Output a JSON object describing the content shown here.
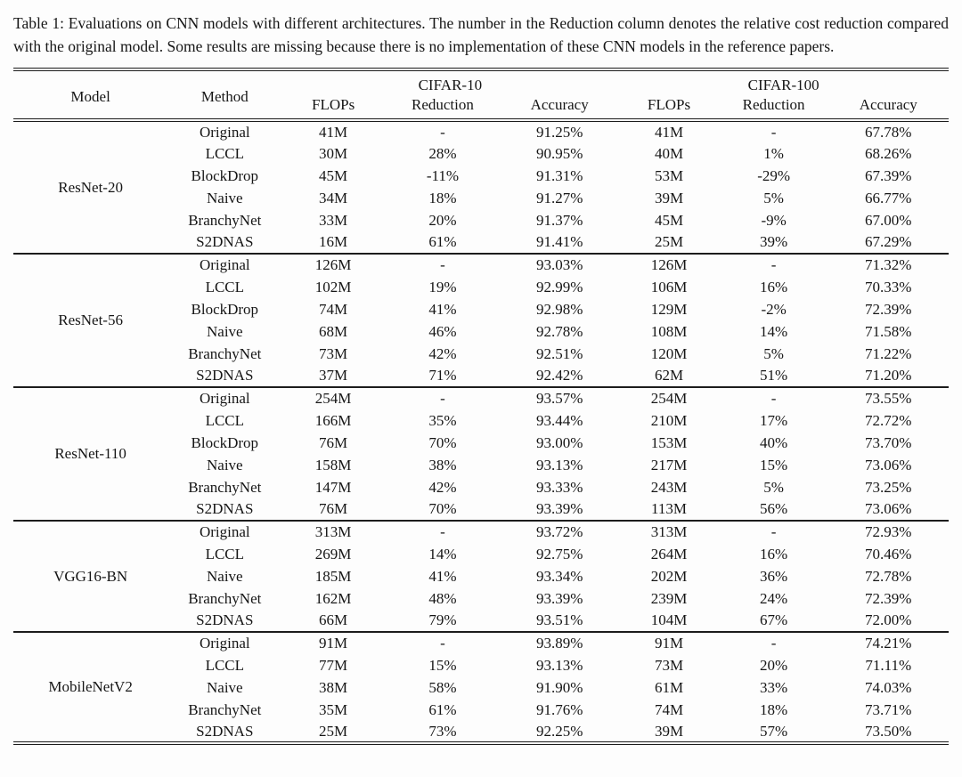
{
  "caption": "Table 1: Evaluations on CNN models with different architectures. The number in the Reduction column denotes the relative cost reduction compared with the original model. Some results are missing because there is no implementation of these CNN models in the reference papers.",
  "table": {
    "headers": {
      "model": "Model",
      "method": "Method",
      "cifar10": "CIFAR-10",
      "cifar100": "CIFAR-100",
      "flops": "FLOPs",
      "reduction": "Reduction",
      "accuracy": "Accuracy"
    },
    "groups": [
      {
        "model": "ResNet-20",
        "rows": [
          {
            "method": "Original",
            "c10_flops": "41M",
            "c10_red": "-",
            "c10_acc": "91.25%",
            "c100_flops": "41M",
            "c100_red": "-",
            "c100_acc": "67.78%"
          },
          {
            "method": "LCCL",
            "c10_flops": "30M",
            "c10_red": "28%",
            "c10_acc": "90.95%",
            "c100_flops": "40M",
            "c100_red": "1%",
            "c100_acc": "68.26%"
          },
          {
            "method": "BlockDrop",
            "c10_flops": "45M",
            "c10_red": "-11%",
            "c10_acc": "91.31%",
            "c100_flops": "53M",
            "c100_red": "-29%",
            "c100_acc": "67.39%"
          },
          {
            "method": "Naive",
            "c10_flops": "34M",
            "c10_red": "18%",
            "c10_acc": "91.27%",
            "c100_flops": "39M",
            "c100_red": "5%",
            "c100_acc": "66.77%"
          },
          {
            "method": "BranchyNet",
            "c10_flops": "33M",
            "c10_red": "20%",
            "c10_acc": "91.37%",
            "c100_flops": "45M",
            "c100_red": "-9%",
            "c100_acc": "67.00%"
          },
          {
            "method": "S2DNAS",
            "c10_flops": "16M",
            "c10_red": "61%",
            "c10_acc": "91.41%",
            "c100_flops": "25M",
            "c100_red": "39%",
            "c100_acc": "67.29%"
          }
        ]
      },
      {
        "model": "ResNet-56",
        "rows": [
          {
            "method": "Original",
            "c10_flops": "126M",
            "c10_red": "-",
            "c10_acc": "93.03%",
            "c100_flops": "126M",
            "c100_red": "-",
            "c100_acc": "71.32%"
          },
          {
            "method": "LCCL",
            "c10_flops": "102M",
            "c10_red": "19%",
            "c10_acc": "92.99%",
            "c100_flops": "106M",
            "c100_red": "16%",
            "c100_acc": "70.33%"
          },
          {
            "method": "BlockDrop",
            "c10_flops": "74M",
            "c10_red": "41%",
            "c10_acc": "92.98%",
            "c100_flops": "129M",
            "c100_red": "-2%",
            "c100_acc": "72.39%"
          },
          {
            "method": "Naive",
            "c10_flops": "68M",
            "c10_red": "46%",
            "c10_acc": "92.78%",
            "c100_flops": "108M",
            "c100_red": "14%",
            "c100_acc": "71.58%"
          },
          {
            "method": "BranchyNet",
            "c10_flops": "73M",
            "c10_red": "42%",
            "c10_acc": "92.51%",
            "c100_flops": "120M",
            "c100_red": "5%",
            "c100_acc": "71.22%"
          },
          {
            "method": "S2DNAS",
            "c10_flops": "37M",
            "c10_red": "71%",
            "c10_acc": "92.42%",
            "c100_flops": "62M",
            "c100_red": "51%",
            "c100_acc": "71.20%"
          }
        ]
      },
      {
        "model": "ResNet-110",
        "rows": [
          {
            "method": "Original",
            "c10_flops": "254M",
            "c10_red": "-",
            "c10_acc": "93.57%",
            "c100_flops": "254M",
            "c100_red": "-",
            "c100_acc": "73.55%"
          },
          {
            "method": "LCCL",
            "c10_flops": "166M",
            "c10_red": "35%",
            "c10_acc": "93.44%",
            "c100_flops": "210M",
            "c100_red": "17%",
            "c100_acc": "72.72%"
          },
          {
            "method": "BlockDrop",
            "c10_flops": "76M",
            "c10_red": "70%",
            "c10_acc": "93.00%",
            "c100_flops": "153M",
            "c100_red": "40%",
            "c100_acc": "73.70%"
          },
          {
            "method": "Naive",
            "c10_flops": "158M",
            "c10_red": "38%",
            "c10_acc": "93.13%",
            "c100_flops": "217M",
            "c100_red": "15%",
            "c100_acc": "73.06%"
          },
          {
            "method": "BranchyNet",
            "c10_flops": "147M",
            "c10_red": "42%",
            "c10_acc": "93.33%",
            "c100_flops": "243M",
            "c100_red": "5%",
            "c100_acc": "73.25%"
          },
          {
            "method": "S2DNAS",
            "c10_flops": "76M",
            "c10_red": "70%",
            "c10_acc": "93.39%",
            "c100_flops": "113M",
            "c100_red": "56%",
            "c100_acc": "73.06%"
          }
        ]
      },
      {
        "model": "VGG16-BN",
        "rows": [
          {
            "method": "Original",
            "c10_flops": "313M",
            "c10_red": "-",
            "c10_acc": "93.72%",
            "c100_flops": "313M",
            "c100_red": "-",
            "c100_acc": "72.93%"
          },
          {
            "method": "LCCL",
            "c10_flops": "269M",
            "c10_red": "14%",
            "c10_acc": "92.75%",
            "c100_flops": "264M",
            "c100_red": "16%",
            "c100_acc": "70.46%"
          },
          {
            "method": "Naive",
            "c10_flops": "185M",
            "c10_red": "41%",
            "c10_acc": "93.34%",
            "c100_flops": "202M",
            "c100_red": "36%",
            "c100_acc": "72.78%"
          },
          {
            "method": "BranchyNet",
            "c10_flops": "162M",
            "c10_red": "48%",
            "c10_acc": "93.39%",
            "c100_flops": "239M",
            "c100_red": "24%",
            "c100_acc": "72.39%"
          },
          {
            "method": "S2DNAS",
            "c10_flops": "66M",
            "c10_red": "79%",
            "c10_acc": "93.51%",
            "c100_flops": "104M",
            "c100_red": "67%",
            "c100_acc": "72.00%"
          }
        ]
      },
      {
        "model": "MobileNetV2",
        "rows": [
          {
            "method": "Original",
            "c10_flops": "91M",
            "c10_red": "-",
            "c10_acc": "93.89%",
            "c100_flops": "91M",
            "c100_red": "-",
            "c100_acc": "74.21%"
          },
          {
            "method": "LCCL",
            "c10_flops": "77M",
            "c10_red": "15%",
            "c10_acc": "93.13%",
            "c100_flops": "73M",
            "c100_red": "20%",
            "c100_acc": "71.11%"
          },
          {
            "method": "Naive",
            "c10_flops": "38M",
            "c10_red": "58%",
            "c10_acc": "91.90%",
            "c100_flops": "61M",
            "c100_red": "33%",
            "c100_acc": "74.03%"
          },
          {
            "method": "BranchyNet",
            "c10_flops": "35M",
            "c10_red": "61%",
            "c10_acc": "91.76%",
            "c100_flops": "74M",
            "c100_red": "18%",
            "c100_acc": "73.71%"
          },
          {
            "method": "S2DNAS",
            "c10_flops": "25M",
            "c10_red": "73%",
            "c10_acc": "92.25%",
            "c100_flops": "39M",
            "c100_red": "57%",
            "c100_acc": "73.50%"
          }
        ]
      }
    ]
  }
}
